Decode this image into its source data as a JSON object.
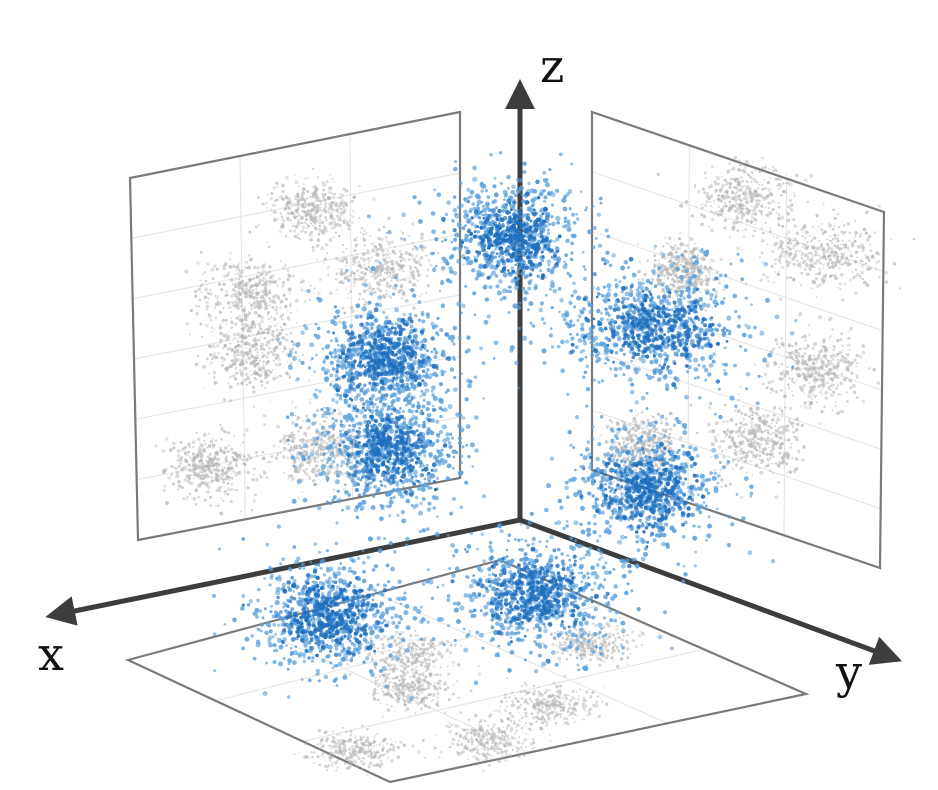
{
  "axes": {
    "x_label": "x",
    "y_label": "y",
    "z_label": "z"
  },
  "colors": {
    "cluster": "#1f6fbd",
    "cluster_light": "#5aa0dc",
    "projection": "#b5b5b5",
    "axis": "#3d3d3d",
    "panel_frame": "#7a7a7a"
  },
  "chart_data": {
    "type": "scatter",
    "grid": true,
    "series": [
      {
        "clusters": 8
      }
    ]
  }
}
